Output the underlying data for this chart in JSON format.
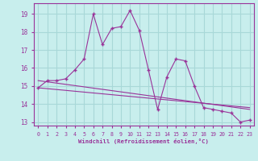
{
  "xlabel": "Windchill (Refroidissement éolien,°C)",
  "bg_color": "#c8eeed",
  "line_color": "#993399",
  "grid_color": "#a8d8d8",
  "ylim": [
    12.8,
    19.6
  ],
  "xlim": [
    -0.5,
    23.5
  ],
  "yticks": [
    13,
    14,
    15,
    16,
    17,
    18,
    19
  ],
  "xticks": [
    0,
    1,
    2,
    3,
    4,
    5,
    6,
    7,
    8,
    9,
    10,
    11,
    12,
    13,
    14,
    15,
    16,
    17,
    18,
    19,
    20,
    21,
    22,
    23
  ],
  "curve1_x": [
    0,
    1,
    2,
    3,
    4,
    5,
    6,
    7,
    8,
    9,
    10,
    11,
    12,
    13,
    14,
    15,
    16,
    17,
    18,
    19,
    20,
    21,
    22,
    23
  ],
  "curve1_y": [
    14.9,
    15.3,
    15.3,
    15.4,
    15.9,
    16.5,
    19.0,
    17.3,
    18.2,
    18.3,
    19.2,
    18.1,
    15.9,
    13.7,
    15.5,
    16.5,
    16.4,
    15.0,
    13.8,
    13.7,
    13.6,
    13.5,
    13.0,
    13.1
  ],
  "line1_x": [
    0,
    23
  ],
  "line1_y": [
    14.9,
    13.8
  ],
  "line2_x": [
    0,
    23
  ],
  "line2_y": [
    15.3,
    13.7
  ]
}
